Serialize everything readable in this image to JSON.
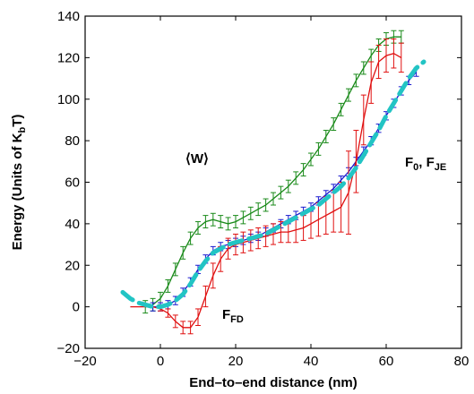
{
  "chart_data": {
    "type": "line",
    "xlabel": "End–to–end distance (nm)",
    "ylabel_main": "Energy (Units of K",
    "ylabel_sub": "b",
    "ylabel_tail": "T)",
    "xlim": [
      -20,
      80
    ],
    "ylim": [
      -20,
      140
    ],
    "xticks": [
      "−20",
      "0",
      "20",
      "40",
      "60",
      "80"
    ],
    "yticks": [
      "−20",
      "0",
      "20",
      "40",
      "60",
      "80",
      "100",
      "120",
      "140"
    ],
    "grid": false,
    "legend": "none",
    "annotations": {
      "w": {
        "main": "⟨W⟩"
      },
      "fjf": {
        "main1": "F",
        "sub1": "0",
        "sep": ", F",
        "sub2": "JE"
      },
      "ffd": {
        "main": "F",
        "sub": "FD"
      }
    },
    "series": [
      {
        "key": "w",
        "color": "#1a8a1a",
        "x": [
          -4,
          -2,
          0,
          2,
          4,
          6,
          8,
          10,
          12,
          14,
          16,
          18,
          20,
          22,
          24,
          26,
          28,
          30,
          32,
          34,
          36,
          38,
          40,
          42,
          44,
          46,
          48,
          50,
          52,
          54,
          56,
          58,
          60,
          62,
          64
        ],
        "y": [
          0,
          1,
          4,
          10,
          18,
          26,
          33,
          38,
          41,
          42,
          41,
          40,
          41,
          43,
          45,
          47,
          49,
          52,
          55,
          58,
          62,
          66,
          71,
          76,
          82,
          88,
          95,
          102,
          109,
          115,
          121,
          126,
          129,
          130,
          130
        ],
        "err": 3
      },
      {
        "key": "ffd",
        "color": "#e01010",
        "x": [
          -8,
          -6,
          -4,
          -2,
          0,
          2,
          4,
          6,
          8,
          10,
          12,
          14,
          16,
          18,
          20,
          22,
          24,
          26,
          28,
          30,
          32,
          34,
          36,
          38,
          40,
          42,
          44,
          46,
          48,
          50,
          52,
          54,
          56,
          58,
          60,
          62,
          64
        ],
        "y": [
          0,
          0,
          0,
          0,
          -1,
          -3,
          -7,
          -10,
          -10,
          -5,
          5,
          15,
          23,
          28,
          30,
          31,
          32,
          33,
          34,
          35,
          36,
          36,
          37,
          38,
          40,
          42,
          44,
          46,
          48,
          55,
          70,
          90,
          108,
          118,
          121,
          122,
          120
        ],
        "err": [
          0,
          0,
          0,
          0,
          1,
          2,
          3,
          3,
          3,
          4,
          5,
          6,
          6,
          5,
          5,
          5,
          5,
          5,
          5,
          5,
          5,
          5,
          6,
          6,
          7,
          8,
          9,
          10,
          12,
          20,
          15,
          12,
          10,
          8,
          8,
          7,
          7
        ]
      },
      {
        "key": "fje",
        "color": "#1a1ad0",
        "x": [
          -2,
          0,
          2,
          4,
          6,
          8,
          10,
          12,
          14,
          16,
          18,
          20,
          22,
          24,
          26,
          28,
          30,
          32,
          34,
          36,
          38,
          40,
          42,
          44,
          46,
          48,
          50,
          52,
          54,
          56,
          58,
          60,
          62,
          64,
          66,
          68
        ],
        "y": [
          0,
          0,
          1,
          3,
          7,
          12,
          18,
          23,
          27,
          29,
          30,
          31,
          32,
          33,
          34,
          36,
          38,
          40,
          42,
          44,
          46,
          48,
          51,
          54,
          57,
          61,
          65,
          70,
          75,
          80,
          86,
          92,
          98,
          104,
          109,
          113
        ],
        "err": 2
      },
      {
        "key": "f0",
        "color": "#22c4c4",
        "x": [
          -10,
          -8,
          -6,
          -4,
          -2,
          0,
          2,
          4,
          6,
          8,
          10,
          12,
          14,
          16,
          18,
          20,
          22,
          24,
          26,
          28,
          30,
          32,
          34,
          36,
          38,
          40,
          42,
          44,
          46,
          48,
          50,
          52,
          54,
          56,
          58,
          60,
          62,
          64,
          66,
          68,
          70
        ],
        "y": [
          7,
          4,
          2,
          1,
          0,
          0,
          1,
          3,
          6,
          11,
          17,
          22,
          26,
          28,
          30,
          31,
          32,
          33,
          34,
          35,
          37,
          39,
          41,
          43,
          45,
          47,
          49,
          52,
          55,
          58,
          62,
          67,
          73,
          79,
          85,
          92,
          98,
          104,
          110,
          115,
          118
        ]
      }
    ]
  }
}
